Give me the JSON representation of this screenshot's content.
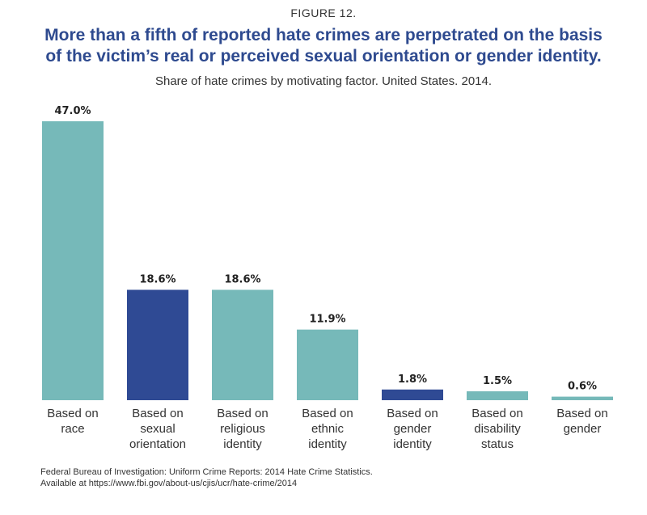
{
  "figure_label": "FIGURE 12.",
  "title_lines": [
    "More than a fifth of reported hate crimes are perpetrated on the basis",
    "of the victim’s real or perceived sexual orientation or gender identity."
  ],
  "subtitle": "Share of hate crimes by motivating factor. United States. 2014.",
  "source_lines": [
    "Federal Bureau of Investigation: Uniform Crime Reports: 2014 Hate Crime Statistics.",
    "Available at https://www.fbi.gov/about-us/cjis/ucr/hate-crime/2014"
  ],
  "colors": {
    "teal": "#76b9b9",
    "navy": "#2f4a94",
    "title": "#2e4a8f"
  },
  "chart_data": {
    "type": "bar",
    "title": "More than a fifth of reported hate crimes are perpetrated on the basis of the victim’s real or perceived sexual orientation or gender identity.",
    "subtitle": "Share of hate crimes by motivating factor. United States. 2014.",
    "xlabel": "",
    "ylabel": "",
    "ylim": [
      0,
      47
    ],
    "grid": false,
    "categories": [
      [
        "Based on",
        "race"
      ],
      [
        "Based on",
        "sexual",
        "orientation"
      ],
      [
        "Based on",
        "religious",
        "identity"
      ],
      [
        "Based on",
        "ethnic",
        "identity"
      ],
      [
        "Based on",
        "gender",
        "identity"
      ],
      [
        "Based on",
        "disability",
        "status"
      ],
      [
        "Based on",
        "gender"
      ]
    ],
    "values": [
      47.0,
      18.6,
      18.6,
      11.9,
      1.8,
      1.5,
      0.6
    ],
    "value_labels": [
      "47.0%",
      "18.6%",
      "18.6%",
      "11.9%",
      "1.8%",
      "1.5%",
      "0.6%"
    ],
    "highlight": [
      false,
      true,
      false,
      false,
      true,
      false,
      false
    ]
  }
}
